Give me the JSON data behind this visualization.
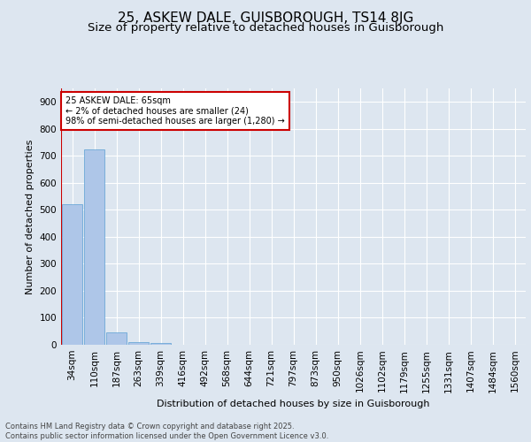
{
  "title1": "25, ASKEW DALE, GUISBOROUGH, TS14 8JG",
  "title2": "Size of property relative to detached houses in Guisborough",
  "xlabel": "Distribution of detached houses by size in Guisborough",
  "ylabel": "Number of detached properties",
  "categories": [
    "34sqm",
    "110sqm",
    "187sqm",
    "263sqm",
    "339sqm",
    "416sqm",
    "492sqm",
    "568sqm",
    "644sqm",
    "721sqm",
    "797sqm",
    "873sqm",
    "950sqm",
    "1026sqm",
    "1102sqm",
    "1179sqm",
    "1255sqm",
    "1331sqm",
    "1407sqm",
    "1484sqm",
    "1560sqm"
  ],
  "values": [
    520,
    725,
    46,
    10,
    5,
    0,
    0,
    0,
    0,
    0,
    0,
    0,
    0,
    0,
    0,
    0,
    0,
    0,
    0,
    0,
    0
  ],
  "bar_color": "#aec6e8",
  "bar_edge_color": "#5a9fd4",
  "annotation_box_text": "25 ASKEW DALE: 65sqm\n← 2% of detached houses are smaller (24)\n98% of semi-detached houses are larger (1,280) →",
  "annotation_box_color": "#ffffff",
  "annotation_box_edge_color": "#cc0000",
  "vline_color": "#cc0000",
  "ylim": [
    0,
    950
  ],
  "yticks": [
    0,
    100,
    200,
    300,
    400,
    500,
    600,
    700,
    800,
    900
  ],
  "background_color": "#dde6f0",
  "footer_text": "Contains HM Land Registry data © Crown copyright and database right 2025.\nContains public sector information licensed under the Open Government Licence v3.0.",
  "title_fontsize": 11,
  "subtitle_fontsize": 9.5,
  "axis_label_fontsize": 8,
  "tick_fontsize": 7.5,
  "footer_fontsize": 6
}
